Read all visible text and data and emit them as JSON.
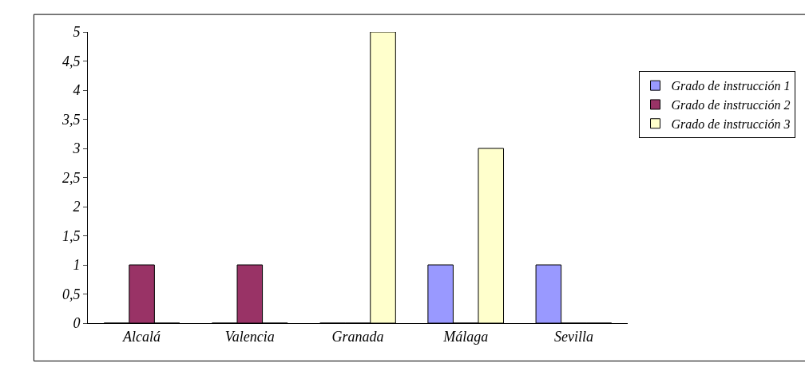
{
  "chart_data": {
    "type": "bar",
    "categories": [
      "Alcalá",
      "Valencia",
      "Granada",
      "Málaga",
      "Sevilla"
    ],
    "series": [
      {
        "name": "Grado de instrucción 1",
        "color": "#9999ff",
        "values": [
          0,
          0,
          0,
          1,
          1
        ]
      },
      {
        "name": "Grado de instrucción 2",
        "color": "#993366",
        "values": [
          1,
          1,
          0,
          0,
          0
        ]
      },
      {
        "name": "Grado de instrucción 3",
        "color": "#ffffcc",
        "values": [
          0,
          0,
          5,
          3,
          0
        ]
      }
    ],
    "ylim": [
      0,
      5
    ],
    "yticks": [
      0,
      {
        "value": 0.5,
        "label": "0,5"
      },
      1,
      {
        "value": 1.5,
        "label": "1,5"
      },
      2,
      {
        "value": 2.5,
        "label": "2,5"
      },
      3,
      {
        "value": 3.5,
        "label": "3,5"
      },
      4,
      {
        "value": 4.5,
        "label": "4,5"
      },
      5
    ],
    "legend": "right"
  }
}
